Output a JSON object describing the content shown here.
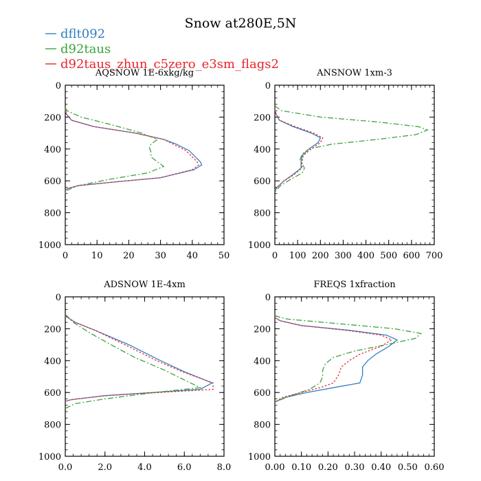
{
  "figure": {
    "title": "Snow at280E,5N",
    "legend": [
      {
        "name": "dflt092",
        "color": "#2f7fc1",
        "dash": "solid"
      },
      {
        "name": "d92taus",
        "color": "#3aa33a",
        "dash": "dashdot"
      },
      {
        "name": "d92taus_zhun_c5zero_e3sm_flags2",
        "color": "#e8242a",
        "dash": "dotted"
      }
    ]
  },
  "chart_data": [
    {
      "type": "line",
      "title": "AQSNOW  1E-6xkg/kg",
      "xlim": [
        0,
        50
      ],
      "ylim": [
        1000,
        0
      ],
      "xticks": [
        0,
        10,
        20,
        30,
        40,
        50
      ],
      "xticklabels": [
        "0",
        "10",
        "20",
        "30",
        "40",
        "50"
      ],
      "yticks": [
        0,
        200,
        400,
        600,
        800,
        1000
      ],
      "yticklabels": [
        "0",
        "200",
        "400",
        "600",
        "800",
        "1000"
      ],
      "series": [
        {
          "name": "dflt092",
          "points": [
            [
              0,
              150
            ],
            [
              0.3,
              180
            ],
            [
              2,
              220
            ],
            [
              9,
              260
            ],
            [
              22,
              300
            ],
            [
              31,
              340
            ],
            [
              35,
              370
            ],
            [
              39,
              410
            ],
            [
              41,
              450
            ],
            [
              42.5,
              480
            ],
            [
              43,
              500
            ],
            [
              40.5,
              530
            ],
            [
              30,
              580
            ],
            [
              14,
              610
            ],
            [
              4,
              630
            ],
            [
              0.5,
              650
            ],
            [
              0,
              660
            ]
          ]
        },
        {
          "name": "d92taus",
          "points": [
            [
              0,
              140
            ],
            [
              0.5,
              160
            ],
            [
              5,
              200
            ],
            [
              15,
              250
            ],
            [
              24,
              300
            ],
            [
              29,
              340
            ],
            [
              27,
              370
            ],
            [
              26.5,
              390
            ],
            [
              27,
              420
            ],
            [
              27,
              450
            ],
            [
              29,
              480
            ],
            [
              31,
              510
            ],
            [
              26,
              550
            ],
            [
              14,
              590
            ],
            [
              4,
              630
            ],
            [
              0.5,
              660
            ],
            [
              0,
              680
            ]
          ]
        },
        {
          "name": "d92taus_zhun_c5zero_e3sm_flags2",
          "points": [
            [
              0,
              150
            ],
            [
              0.3,
              180
            ],
            [
              2,
              220
            ],
            [
              9,
              260
            ],
            [
              22,
              300
            ],
            [
              31,
              340
            ],
            [
              34,
              370
            ],
            [
              38,
              410
            ],
            [
              40,
              450
            ],
            [
              41.5,
              480
            ],
            [
              42,
              500
            ],
            [
              40,
              530
            ],
            [
              30,
              580
            ],
            [
              14,
              610
            ],
            [
              4,
              630
            ],
            [
              0.5,
              650
            ],
            [
              0,
              660
            ]
          ]
        }
      ]
    },
    {
      "type": "line",
      "title": "ANSNOW  1xm-3",
      "xlim": [
        0,
        700
      ],
      "ylim": [
        1000,
        0
      ],
      "xticks": [
        0,
        100,
        200,
        300,
        400,
        500,
        600,
        700
      ],
      "xticklabels": [
        "0",
        "100",
        "200",
        "300",
        "400",
        "500",
        "600",
        "700"
      ],
      "yticks": [
        0,
        200,
        400,
        600,
        800,
        1000
      ],
      "yticklabels": [
        "0",
        "200",
        "400",
        "600",
        "800",
        "1000"
      ],
      "series": [
        {
          "name": "dflt092",
          "points": [
            [
              0,
              150
            ],
            [
              5,
              180
            ],
            [
              20,
              220
            ],
            [
              80,
              260
            ],
            [
              160,
              300
            ],
            [
              200,
              330
            ],
            [
              190,
              360
            ],
            [
              150,
              400
            ],
            [
              120,
              440
            ],
            [
              115,
              480
            ],
            [
              115,
              520
            ],
            [
              80,
              560
            ],
            [
              40,
              600
            ],
            [
              10,
              640
            ],
            [
              0,
              660
            ]
          ]
        },
        {
          "name": "d92taus",
          "points": [
            [
              0,
              130
            ],
            [
              30,
              160
            ],
            [
              200,
              200
            ],
            [
              450,
              230
            ],
            [
              630,
              260
            ],
            [
              670,
              280
            ],
            [
              620,
              310
            ],
            [
              450,
              340
            ],
            [
              250,
              370
            ],
            [
              150,
              400
            ],
            [
              120,
              430
            ],
            [
              110,
              470
            ],
            [
              130,
              520
            ],
            [
              120,
              550
            ],
            [
              70,
              590
            ],
            [
              25,
              630
            ],
            [
              0,
              670
            ]
          ]
        },
        {
          "name": "d92taus_zhun_c5zero_e3sm_flags2",
          "points": [
            [
              0,
              150
            ],
            [
              5,
              180
            ],
            [
              20,
              220
            ],
            [
              90,
              260
            ],
            [
              170,
              300
            ],
            [
              210,
              330
            ],
            [
              200,
              360
            ],
            [
              160,
              400
            ],
            [
              125,
              440
            ],
            [
              120,
              480
            ],
            [
              118,
              520
            ],
            [
              85,
              560
            ],
            [
              40,
              600
            ],
            [
              10,
              640
            ],
            [
              0,
              660
            ]
          ]
        }
      ]
    },
    {
      "type": "line",
      "title": "ADSNOW  1E-4xm",
      "xlim": [
        0,
        8
      ],
      "ylim": [
        1000,
        0
      ],
      "xticks": [
        0,
        2,
        4,
        6,
        8
      ],
      "xticklabels": [
        "0.0",
        "2.0",
        "4.0",
        "6.0",
        "8.0"
      ],
      "yticks": [
        0,
        200,
        400,
        600,
        800,
        1000
      ],
      "yticklabels": [
        "0",
        "200",
        "400",
        "600",
        "800",
        "1000"
      ],
      "series": [
        {
          "name": "dflt092",
          "points": [
            [
              0,
              120
            ],
            [
              0.5,
              160
            ],
            [
              1.5,
              210
            ],
            [
              3.2,
              300
            ],
            [
              4.8,
              400
            ],
            [
              6,
              470
            ],
            [
              7.4,
              540
            ],
            [
              6.8,
              580
            ],
            [
              2,
              620
            ],
            [
              0.3,
              645
            ],
            [
              0,
              655
            ]
          ]
        },
        {
          "name": "d92taus",
          "points": [
            [
              0,
              110
            ],
            [
              0.4,
              160
            ],
            [
              1.3,
              230
            ],
            [
              2.3,
              300
            ],
            [
              3.5,
              380
            ],
            [
              5,
              460
            ],
            [
              6.8,
              570
            ],
            [
              4.5,
              600
            ],
            [
              2,
              640
            ],
            [
              0.5,
              670
            ],
            [
              0,
              700
            ]
          ]
        },
        {
          "name": "d92taus_zhun_c5zero_e3sm_flags2",
          "points": [
            [
              0,
              120
            ],
            [
              0.5,
              160
            ],
            [
              1.5,
              210
            ],
            [
              3.0,
              300
            ],
            [
              4.6,
              400
            ],
            [
              5.9,
              470
            ],
            [
              7.45,
              540
            ],
            [
              7.45,
              580
            ],
            [
              2,
              620
            ],
            [
              0.3,
              645
            ],
            [
              0,
              655
            ]
          ]
        }
      ]
    },
    {
      "type": "line",
      "title": "FREQS  1xfraction",
      "xlim": [
        0,
        0.6
      ],
      "ylim": [
        1000,
        0
      ],
      "xticks": [
        0,
        0.1,
        0.2,
        0.3,
        0.4,
        0.5,
        0.6
      ],
      "xticklabels": [
        "0.00",
        "0.10",
        "0.20",
        "0.30",
        "0.40",
        "0.50",
        "0.60"
      ],
      "yticks": [
        0,
        200,
        400,
        600,
        800,
        1000
      ],
      "yticklabels": [
        "0",
        "200",
        "400",
        "600",
        "800",
        "1000"
      ],
      "series": [
        {
          "name": "dflt092",
          "points": [
            [
              0,
              130
            ],
            [
              0.02,
              150
            ],
            [
              0.1,
              180
            ],
            [
              0.28,
              210
            ],
            [
              0.42,
              240
            ],
            [
              0.46,
              270
            ],
            [
              0.43,
              310
            ],
            [
              0.38,
              360
            ],
            [
              0.35,
              400
            ],
            [
              0.33,
              440
            ],
            [
              0.33,
              490
            ],
            [
              0.32,
              540
            ],
            [
              0.22,
              570
            ],
            [
              0.12,
              600
            ],
            [
              0.04,
              630
            ],
            [
              0,
              660
            ]
          ]
        },
        {
          "name": "d92taus",
          "points": [
            [
              0,
              120
            ],
            [
              0.05,
              140
            ],
            [
              0.25,
              170
            ],
            [
              0.45,
              200
            ],
            [
              0.55,
              230
            ],
            [
              0.53,
              260
            ],
            [
              0.42,
              300
            ],
            [
              0.3,
              340
            ],
            [
              0.22,
              380
            ],
            [
              0.19,
              420
            ],
            [
              0.18,
              460
            ],
            [
              0.18,
              500
            ],
            [
              0.17,
              540
            ],
            [
              0.13,
              580
            ],
            [
              0.06,
              620
            ],
            [
              0,
              660
            ]
          ]
        },
        {
          "name": "d92taus_zhun_c5zero_e3sm_flags2",
          "points": [
            [
              0,
              130
            ],
            [
              0.02,
              150
            ],
            [
              0.1,
              180
            ],
            [
              0.27,
              210
            ],
            [
              0.4,
              240
            ],
            [
              0.44,
              270
            ],
            [
              0.4,
              310
            ],
            [
              0.32,
              360
            ],
            [
              0.28,
              400
            ],
            [
              0.25,
              440
            ],
            [
              0.24,
              490
            ],
            [
              0.22,
              540
            ],
            [
              0.17,
              570
            ],
            [
              0.1,
              600
            ],
            [
              0.03,
              630
            ],
            [
              0,
              660
            ]
          ]
        }
      ]
    }
  ]
}
